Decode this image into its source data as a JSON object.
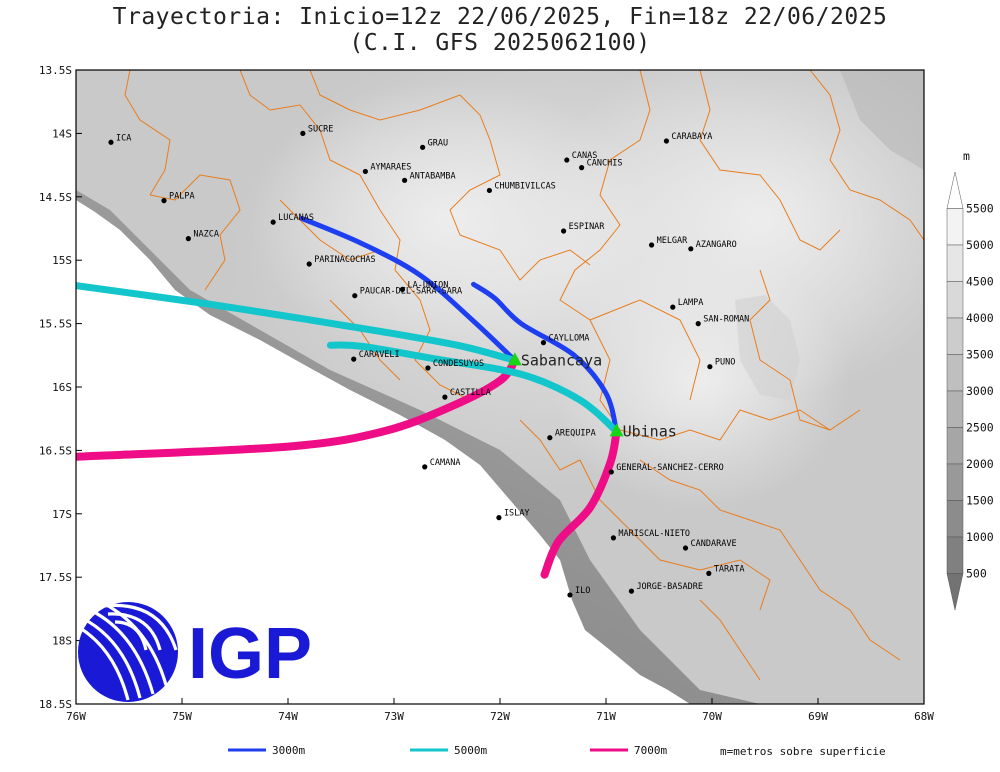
{
  "title": {
    "line1": "Trayectoria: Inicio=12z 22/06/2025, Fin=18z 22/06/2025",
    "line2": "(C.I. GFS 2025062100)"
  },
  "map": {
    "lon_range": [
      -76,
      -68
    ],
    "lat_range": [
      -18.5,
      -13.5
    ],
    "x_ticks": [
      {
        "lon": -76,
        "label": "76W"
      },
      {
        "lon": -75,
        "label": "75W"
      },
      {
        "lon": -74,
        "label": "74W"
      },
      {
        "lon": -73,
        "label": "73W"
      },
      {
        "lon": -72,
        "label": "72W"
      },
      {
        "lon": -71,
        "label": "71W"
      },
      {
        "lon": -70,
        "label": "70W"
      },
      {
        "lon": -69,
        "label": "69W"
      },
      {
        "lon": -68,
        "label": "68W"
      }
    ],
    "y_ticks": [
      {
        "lat": -13.5,
        "label": "13.5S"
      },
      {
        "lat": -14,
        "label": "14S"
      },
      {
        "lat": -14.5,
        "label": "14.5S"
      },
      {
        "lat": -15,
        "label": "15S"
      },
      {
        "lat": -15.5,
        "label": "15.5S"
      },
      {
        "lat": -16,
        "label": "16S"
      },
      {
        "lat": -16.5,
        "label": "16.5S"
      },
      {
        "lat": -17,
        "label": "17S"
      },
      {
        "lat": -17.5,
        "label": "17.5S"
      },
      {
        "lat": -18,
        "label": "18S"
      },
      {
        "lat": -18.5,
        "label": "18.5S"
      }
    ],
    "provinces": [
      {
        "name": "ICA",
        "lon": -75.67,
        "lat": -14.07
      },
      {
        "name": "SUCRE",
        "lon": -73.86,
        "lat": -14.0
      },
      {
        "name": "GRAU",
        "lon": -72.73,
        "lat": -14.11
      },
      {
        "name": "AYMARAES",
        "lon": -73.27,
        "lat": -14.3
      },
      {
        "name": "ANTABAMBA",
        "lon": -72.9,
        "lat": -14.37
      },
      {
        "name": "CANAS",
        "lon": -71.37,
        "lat": -14.21
      },
      {
        "name": "CANCHIS",
        "lon": -71.23,
        "lat": -14.27
      },
      {
        "name": "CARABAYA",
        "lon": -70.43,
        "lat": -14.06
      },
      {
        "name": "CHUMBIVILCAS",
        "lon": -72.1,
        "lat": -14.45
      },
      {
        "name": "PALPA",
        "lon": -75.17,
        "lat": -14.53
      },
      {
        "name": "LUCANAS",
        "lon": -74.14,
        "lat": -14.7
      },
      {
        "name": "ESPINAR",
        "lon": -71.4,
        "lat": -14.77
      },
      {
        "name": "NAZCA",
        "lon": -74.94,
        "lat": -14.83
      },
      {
        "name": "MELGAR",
        "lon": -70.57,
        "lat": -14.88
      },
      {
        "name": "AZANGARO",
        "lon": -70.2,
        "lat": -14.91
      },
      {
        "name": "PARINACOCHAS",
        "lon": -73.8,
        "lat": -15.03
      },
      {
        "name": "LA-UNION",
        "lon": -72.92,
        "lat": -15.23
      },
      {
        "name": "PAUCAR-DEL-SARA-SARA",
        "lon": -73.37,
        "lat": -15.28
      },
      {
        "name": "LAMPA",
        "lon": -70.37,
        "lat": -15.37
      },
      {
        "name": "SAN-ROMAN",
        "lon": -70.13,
        "lat": -15.5
      },
      {
        "name": "CAYLLOMA",
        "lon": -71.59,
        "lat": -15.65
      },
      {
        "name": "CARAVELI",
        "lon": -73.38,
        "lat": -15.78
      },
      {
        "name": "CONDESUYOS",
        "lon": -72.68,
        "lat": -15.85
      },
      {
        "name": "PUNO",
        "lon": -70.02,
        "lat": -15.84
      },
      {
        "name": "CASTILLA",
        "lon": -72.52,
        "lat": -16.08
      },
      {
        "name": "AREQUIPA",
        "lon": -71.53,
        "lat": -16.4
      },
      {
        "name": "CAMANA",
        "lon": -72.71,
        "lat": -16.63
      },
      {
        "name": "GENERAL-SANCHEZ-CERRO",
        "lon": -70.95,
        "lat": -16.67
      },
      {
        "name": "ISLAY",
        "lon": -72.01,
        "lat": -17.03
      },
      {
        "name": "MARISCAL-NIETO",
        "lon": -70.93,
        "lat": -17.19
      },
      {
        "name": "CANDARAVE",
        "lon": -70.25,
        "lat": -17.27
      },
      {
        "name": "TARATA",
        "lon": -70.03,
        "lat": -17.47
      },
      {
        "name": "JORGE-BASADRE",
        "lon": -70.76,
        "lat": -17.61
      },
      {
        "name": "ILO",
        "lon": -71.34,
        "lat": -17.64
      }
    ],
    "volcanoes": [
      {
        "name": "Sabancaya",
        "lon": -71.86,
        "lat": -15.79
      },
      {
        "name": "Ubinas",
        "lon": -70.9,
        "lat": -16.35
      }
    ],
    "colors": {
      "3000m": "#1e3ff0",
      "5000m": "#12c6cc",
      "7000m": "#ee0d86",
      "border": "#e87d1e",
      "volcano": "#16d616"
    }
  },
  "trajectories": [
    {
      "volcano": "Sabancaya",
      "level": "3000m",
      "points": [
        [
          -71.86,
          -15.79
        ],
        [
          -72.25,
          -15.48
        ],
        [
          -72.75,
          -15.12
        ],
        [
          -73.3,
          -14.87
        ],
        [
          -73.87,
          -14.67
        ]
      ]
    },
    {
      "volcano": "Sabancaya",
      "level": "5000m",
      "points": [
        [
          -71.86,
          -15.79
        ],
        [
          -72.35,
          -15.68
        ],
        [
          -73.0,
          -15.58
        ],
        [
          -73.8,
          -15.47
        ],
        [
          -74.8,
          -15.34
        ],
        [
          -76.0,
          -15.2
        ]
      ]
    },
    {
      "volcano": "Sabancaya",
      "level": "7000m",
      "points": [
        [
          -71.86,
          -15.79
        ],
        [
          -72.0,
          -15.95
        ],
        [
          -72.45,
          -16.15
        ],
        [
          -73.1,
          -16.35
        ],
        [
          -74.0,
          -16.47
        ],
        [
          -76.0,
          -16.55
        ]
      ]
    },
    {
      "volcano": "Ubinas",
      "level": "3000m",
      "points": [
        [
          -70.9,
          -16.35
        ],
        [
          -71.0,
          -16.05
        ],
        [
          -71.3,
          -15.75
        ],
        [
          -71.8,
          -15.5
        ],
        [
          -72.05,
          -15.3
        ],
        [
          -72.25,
          -15.19
        ]
      ]
    },
    {
      "volcano": "Ubinas",
      "level": "5000m",
      "points": [
        [
          -70.9,
          -16.35
        ],
        [
          -71.25,
          -16.1
        ],
        [
          -71.8,
          -15.9
        ],
        [
          -72.6,
          -15.78
        ],
        [
          -73.3,
          -15.68
        ],
        [
          -73.6,
          -15.67
        ]
      ]
    },
    {
      "volcano": "Ubinas",
      "level": "7000m",
      "points": [
        [
          -70.9,
          -16.35
        ],
        [
          -70.96,
          -16.6
        ],
        [
          -71.15,
          -16.95
        ],
        [
          -71.45,
          -17.22
        ],
        [
          -71.58,
          -17.48
        ]
      ]
    }
  ],
  "colorbar": {
    "unit": "m",
    "labels": [
      "5500",
      "5000",
      "4500",
      "4000",
      "3500",
      "3000",
      "2500",
      "2000",
      "1500",
      "1000",
      "500"
    ],
    "shades": [
      "#ffffff",
      "#f3f3f3",
      "#e6e6e6",
      "#d9d9d9",
      "#cccccc",
      "#bfbfbf",
      "#b3b3b3",
      "#a6a6a6",
      "#999999",
      "#8c8c8c",
      "#808080",
      "#737373"
    ]
  },
  "legend": {
    "items": [
      {
        "label": "3000m",
        "color": "#1e3ff0"
      },
      {
        "label": "5000m",
        "color": "#12c6cc"
      },
      {
        "label": "7000m",
        "color": "#ee0d86"
      }
    ],
    "note": "m=metros sobre superficie"
  },
  "logo": {
    "text": "IGP",
    "color": "#1a1ad6"
  }
}
